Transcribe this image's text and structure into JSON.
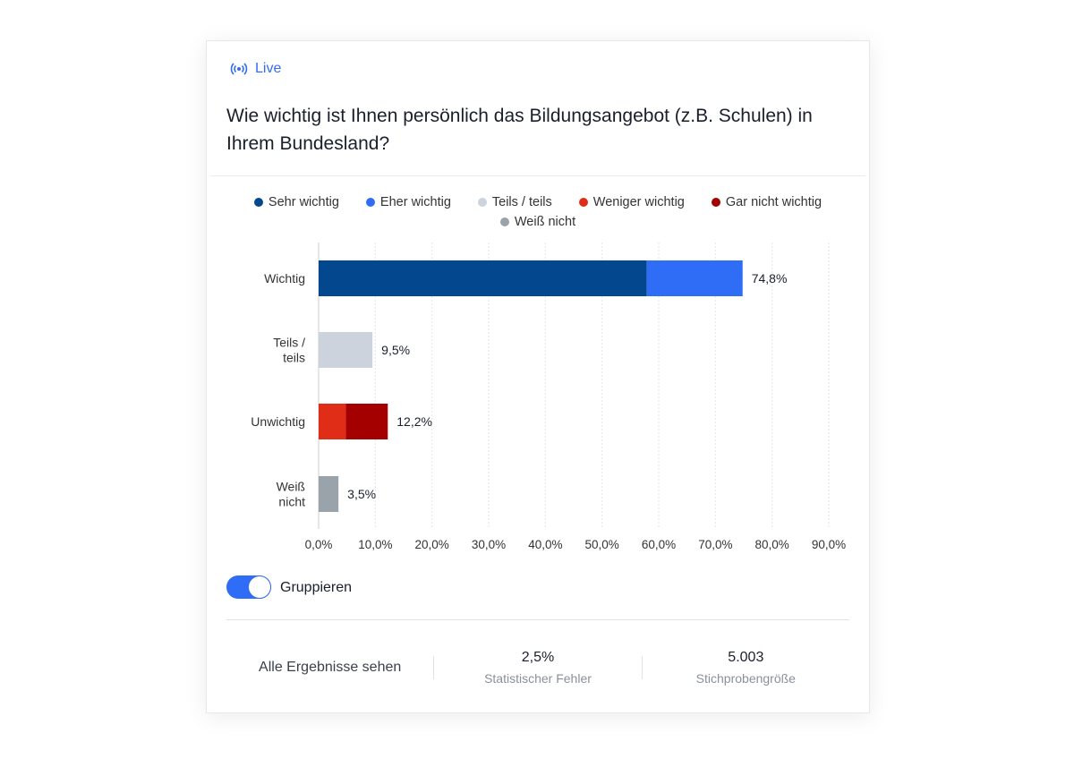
{
  "header": {
    "live_label": "Live",
    "title": "Wie wichtig ist Ihnen persönlich das Bildungsangebot (z.B. Schulen) in Ihrem Bundesland?"
  },
  "legend": [
    {
      "label": "Sehr wichtig",
      "color": "#03478f"
    },
    {
      "label": "Eher wichtig",
      "color": "#2f6df6"
    },
    {
      "label": "Teils / teils",
      "color": "#ccd3dd"
    },
    {
      "label": "Weniger wichtig",
      "color": "#e02d18"
    },
    {
      "label": "Gar nicht wichtig",
      "color": "#a50000"
    },
    {
      "label": "Weiß nicht",
      "color": "#9aa2aa"
    }
  ],
  "chart_data": {
    "type": "bar",
    "orientation": "horizontal",
    "stacked": true,
    "categories": [
      "Wichtig",
      "Teils / teils",
      "Unwichtig",
      "Weiß nicht"
    ],
    "series": [
      {
        "name": "Sehr wichtig",
        "values": [
          57.9,
          0,
          0,
          0
        ]
      },
      {
        "name": "Eher wichtig",
        "values": [
          16.9,
          0,
          0,
          0
        ]
      },
      {
        "name": "Teils / teils",
        "values": [
          0,
          9.5,
          0,
          0
        ]
      },
      {
        "name": "Weniger wichtig",
        "values": [
          0,
          0,
          4.8,
          0
        ]
      },
      {
        "name": "Gar nicht wichtig",
        "values": [
          0,
          0,
          7.4,
          0
        ]
      },
      {
        "name": "Weiß nicht",
        "values": [
          0,
          0,
          0,
          3.5
        ]
      }
    ],
    "data_labels": [
      "74,8%",
      "9,5%",
      "12,2%",
      "3,5%"
    ],
    "xlim": [
      0,
      90
    ],
    "x_ticks": [
      "0,0%",
      "10,0%",
      "20,0%",
      "30,0%",
      "40,0%",
      "50,0%",
      "60,0%",
      "70,0%",
      "80,0%",
      "90,0%"
    ],
    "grid": true,
    "legend_position": "top"
  },
  "toggle": {
    "label": "Gruppieren",
    "on": true
  },
  "footer": {
    "link": "Alle Ergebnisse sehen",
    "error_value": "2,5%",
    "error_label": "Statistischer Fehler",
    "sample_value": "5.003",
    "sample_label": "Stichprobengröße"
  }
}
